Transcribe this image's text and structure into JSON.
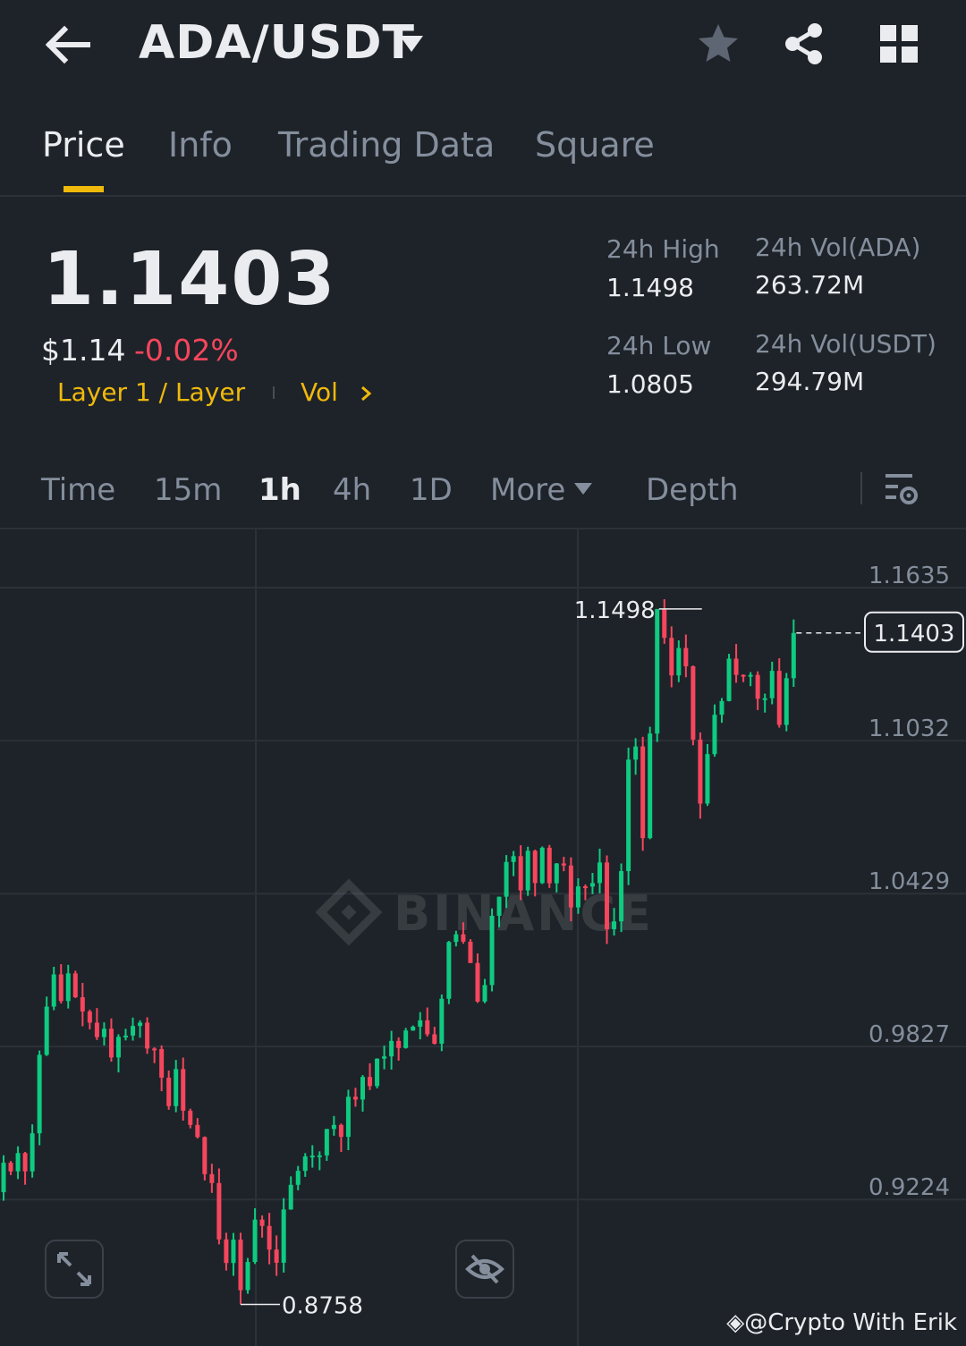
{
  "header": {
    "pair": "ADA/USDT",
    "icons": [
      "back-arrow-icon",
      "dropdown-caret-icon",
      "star-icon",
      "share-icon",
      "grid-icon"
    ]
  },
  "tabs": [
    {
      "label": "Price",
      "active": true
    },
    {
      "label": "Info",
      "active": false
    },
    {
      "label": "Trading Data",
      "active": false
    },
    {
      "label": "Square",
      "active": false
    }
  ],
  "summary": {
    "last_price": "1.1403",
    "usd_price": "$1.14",
    "change": "-0.02%",
    "tag": "Layer 1 / Layer",
    "vol_label": "Vol",
    "stats": [
      {
        "label": "24h High",
        "value": "1.1498"
      },
      {
        "label": "24h Vol(ADA)",
        "value": "263.72M"
      },
      {
        "label": "24h Low",
        "value": "1.0805"
      },
      {
        "label": "24h Vol(USDT)",
        "value": "294.79M"
      }
    ]
  },
  "intervals": [
    {
      "label": "Time",
      "active": false
    },
    {
      "label": "15m",
      "active": false
    },
    {
      "label": "1h",
      "active": true
    },
    {
      "label": "4h",
      "active": false
    },
    {
      "label": "1D",
      "active": false
    },
    {
      "label": "More",
      "active": false
    },
    {
      "label": "Depth",
      "active": false
    }
  ],
  "colors": {
    "up": "#0ecb81",
    "down": "#f6465d",
    "accent": "#f0b90b",
    "bg": "#1e2329"
  },
  "chart": {
    "y_ticks": [
      "1.1635",
      "1.1032",
      "1.0429",
      "0.9827",
      "0.9224"
    ],
    "current_price_label": "1.1403",
    "high_label": "1.1498",
    "low_label": "0.8758",
    "watermark": "BINANCE"
  },
  "chart_data": {
    "type": "candlestick",
    "y_axis_ticks": [
      1.1635,
      1.1032,
      1.0429,
      0.9827,
      0.9224
    ],
    "ylim": [
      0.8594,
      1.1811
    ],
    "high": 1.1498,
    "low": 0.8758,
    "last": 1.1403,
    "closes": [
      0.9316,
      0.9282,
      0.9354,
      0.9282,
      0.9432,
      0.9741,
      0.9931,
      1.0058,
      0.9953,
      1.0062,
      0.9968,
      0.9912,
      0.9868,
      0.9811,
      0.9844,
      0.9731,
      0.9812,
      0.9817,
      0.9855,
      0.9868,
      0.9766,
      0.9764,
      0.9651,
      0.9539,
      0.9685,
      0.9521,
      0.9465,
      0.9417,
      0.9271,
      0.9236,
      0.9014,
      0.8921,
      0.9013,
      0.8814,
      0.8925,
      0.9092,
      0.9067,
      0.8974,
      0.8922,
      0.9132,
      0.9229,
      0.9284,
      0.9341,
      0.9344,
      0.9345,
      0.9449,
      0.9465,
      0.9418,
      0.9576,
      0.9565,
      0.9654,
      0.9618,
      0.9726,
      0.9735,
      0.9796,
      0.9768,
      0.9837,
      0.9852,
      0.9877,
      0.9822,
      0.9785,
      0.9962,
      1.0186,
      1.0216,
      1.0187,
      1.0103,
      0.9951,
      1.0016,
      1.0289,
      1.0364,
      1.0501,
      1.0524,
      1.0389,
      1.0545,
      1.0418,
      1.0557,
      1.0417,
      1.0495,
      1.0487,
      1.0322,
      1.0405,
      1.0404,
      1.0418,
      1.0499,
      1.0236,
      1.0267,
      1.0465,
      1.0904,
      1.0956,
      1.0595,
      1.1007,
      1.1497,
      1.1384,
      1.1236,
      1.1344,
      1.1272,
      1.0983,
      1.0731,
      1.0926,
      1.1081,
      1.1135,
      1.1302,
      1.1238,
      1.1233,
      1.1238,
      1.1144,
      1.1146,
      1.1254,
      1.1041,
      1.1225,
      1.1403
    ]
  }
}
